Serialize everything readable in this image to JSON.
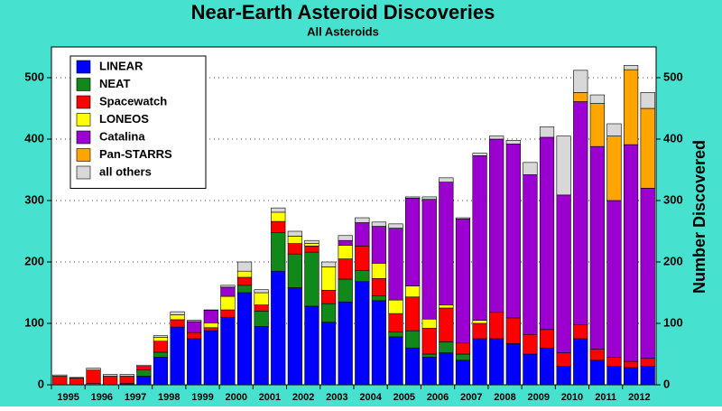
{
  "chart_data": {
    "type": "stacked_bar",
    "title": "Near-Earth Asteroid Discoveries",
    "subtitle": "All Asteroids",
    "y2_label": "Number Discovered",
    "categories": [
      "1995",
      null,
      "1996",
      null,
      "1997",
      null,
      "1998",
      null,
      "1999",
      null,
      "2000",
      null,
      "2001",
      null,
      "2002",
      null,
      "2003",
      null,
      "2004",
      null,
      "2005",
      null,
      "2006",
      null,
      "2007",
      null,
      "2008",
      null,
      "2009",
      null,
      "2010",
      null,
      "2011",
      null,
      "2012",
      null
    ],
    "series": [
      {
        "name": "LINEAR",
        "color": "#0000ff",
        "values": [
          0,
          0,
          0,
          0,
          2,
          14,
          45,
          94,
          75,
          88,
          110,
          150,
          95,
          185,
          158,
          128,
          102,
          135,
          168,
          137,
          78,
          60,
          45,
          52,
          40,
          75,
          75,
          67,
          50,
          60,
          30,
          75,
          40,
          30,
          28,
          30
        ]
      },
      {
        "name": "NEAT",
        "color": "#11881a",
        "values": [
          0,
          0,
          2,
          0,
          0,
          10,
          8,
          0,
          0,
          0,
          0,
          12,
          25,
          63,
          55,
          88,
          30,
          37,
          18,
          8,
          8,
          28,
          5,
          18,
          10,
          0,
          0,
          0,
          0,
          0,
          0,
          0,
          0,
          0,
          0,
          0
        ]
      },
      {
        "name": "Spacewatch",
        "color": "#ff0000",
        "values": [
          14,
          11,
          22,
          14,
          12,
          6,
          18,
          12,
          10,
          5,
          12,
          13,
          10,
          18,
          17,
          10,
          22,
          33,
          40,
          28,
          30,
          55,
          42,
          55,
          18,
          25,
          43,
          42,
          32,
          30,
          22,
          23,
          18,
          15,
          10,
          13
        ]
      },
      {
        "name": "LONEOS",
        "color": "#ffff00",
        "values": [
          0,
          0,
          0,
          0,
          0,
          0,
          6,
          8,
          0,
          8,
          22,
          10,
          20,
          15,
          12,
          4,
          38,
          22,
          0,
          25,
          22,
          18,
          15,
          5,
          0,
          5,
          0,
          0,
          0,
          0,
          0,
          0,
          0,
          0,
          0,
          0
        ]
      },
      {
        "name": "Catalina",
        "color": "#9b00d0",
        "values": [
          0,
          0,
          0,
          0,
          0,
          0,
          0,
          0,
          18,
          20,
          15,
          0,
          0,
          0,
          0,
          0,
          0,
          8,
          38,
          60,
          117,
          143,
          195,
          200,
          202,
          268,
          282,
          283,
          260,
          313,
          257,
          363,
          330,
          255,
          353,
          277
        ]
      },
      {
        "name": "Pan-STARRS",
        "color": "#ffa500",
        "values": [
          0,
          0,
          0,
          0,
          0,
          0,
          0,
          0,
          0,
          0,
          0,
          0,
          0,
          0,
          0,
          0,
          0,
          0,
          0,
          0,
          0,
          0,
          0,
          0,
          0,
          0,
          0,
          0,
          0,
          0,
          0,
          15,
          70,
          105,
          122,
          130
        ]
      },
      {
        "name": "all others",
        "color": "#d8d8d8",
        "values": [
          2,
          1,
          3,
          3,
          3,
          2,
          3,
          5,
          2,
          1,
          3,
          15,
          5,
          7,
          8,
          5,
          8,
          8,
          8,
          7,
          7,
          2,
          4,
          7,
          2,
          4,
          5,
          6,
          20,
          17,
          96,
          36,
          14,
          20,
          7,
          26
        ]
      }
    ],
    "ylim": [
      0,
      550
    ],
    "yticks": [
      0,
      100,
      200,
      300,
      400,
      500
    ],
    "y2lim": [
      0,
      550
    ],
    "y2ticks": [
      0,
      100,
      200,
      300,
      400,
      500
    ],
    "grid": true,
    "legend": "upper left",
    "background": "#46e2cf"
  }
}
